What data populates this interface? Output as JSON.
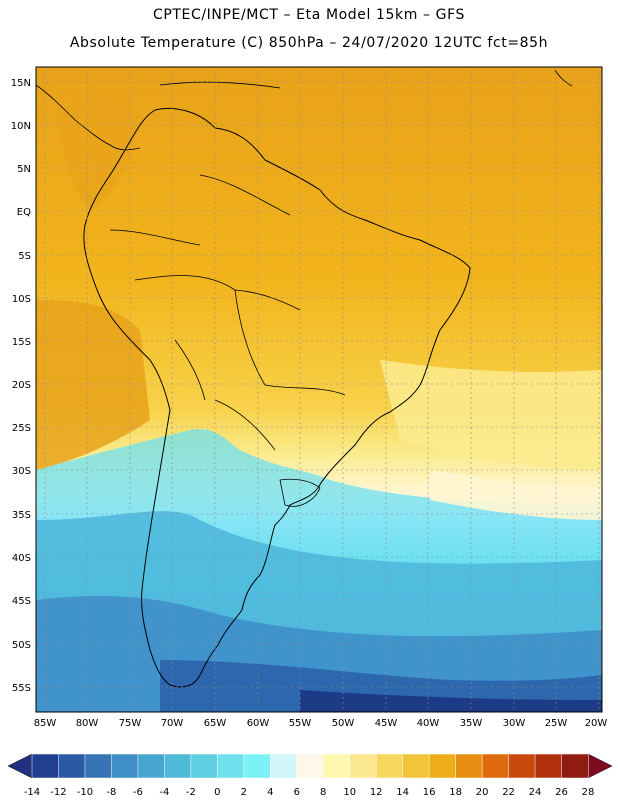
{
  "header": {
    "line1": "CPTEC/INPE/MCT –  Eta Model 15km – GFS",
    "line2": "Absolute Temperature (C) 850hPa – 24/07/2020 12UTC fct=85h"
  },
  "map": {
    "lat_labels": [
      "15N",
      "10N",
      "5N",
      "EQ",
      "5S",
      "10S",
      "15S",
      "20S",
      "25S",
      "30S",
      "35S",
      "40S",
      "45S",
      "50S",
      "55S"
    ],
    "lon_labels": [
      "85W",
      "80W",
      "75W",
      "70W",
      "65W",
      "60W",
      "55W",
      "50W",
      "45W",
      "40W",
      "35W",
      "30W",
      "25W",
      "20W"
    ],
    "field_colors": {
      "hot": "#e8a21a",
      "warm": "#f2b41c",
      "yellow": "#f7d24a",
      "pale": "#fbeb8e",
      "cream": "#fff6d2",
      "light_cyan": "#d6f4fb",
      "cyan": "#6ee0f2",
      "mid_blue": "#4cb6db",
      "blue": "#3f8fca",
      "dark_blue": "#2b63aa",
      "navy": "#1c3a86",
      "land_outline": "#000000"
    }
  },
  "colorbar": {
    "labels": [
      "-14",
      "-12",
      "-10",
      "-8",
      "-6",
      "-4",
      "-2",
      "0",
      "2",
      "4",
      "6",
      "8",
      "10",
      "12",
      "14",
      "16",
      "18",
      "20",
      "22",
      "24",
      "26",
      "28"
    ],
    "colors": [
      "#213f8f",
      "#2b5aa5",
      "#3774b5",
      "#3f8fc6",
      "#47a6d0",
      "#4fbad8",
      "#5fcfe2",
      "#6fe0ec",
      "#7cf2f6",
      "#d0f6fb",
      "#fff8e8",
      "#fef8b0",
      "#fbe890",
      "#f7d65e",
      "#f2c43a",
      "#eeae1a",
      "#e58e12",
      "#dd6a0c",
      "#c9480c",
      "#b0300c",
      "#8e1c12"
    ],
    "left_arrow_color": "#21307f",
    "right_arrow_color": "#7d0a1f"
  }
}
